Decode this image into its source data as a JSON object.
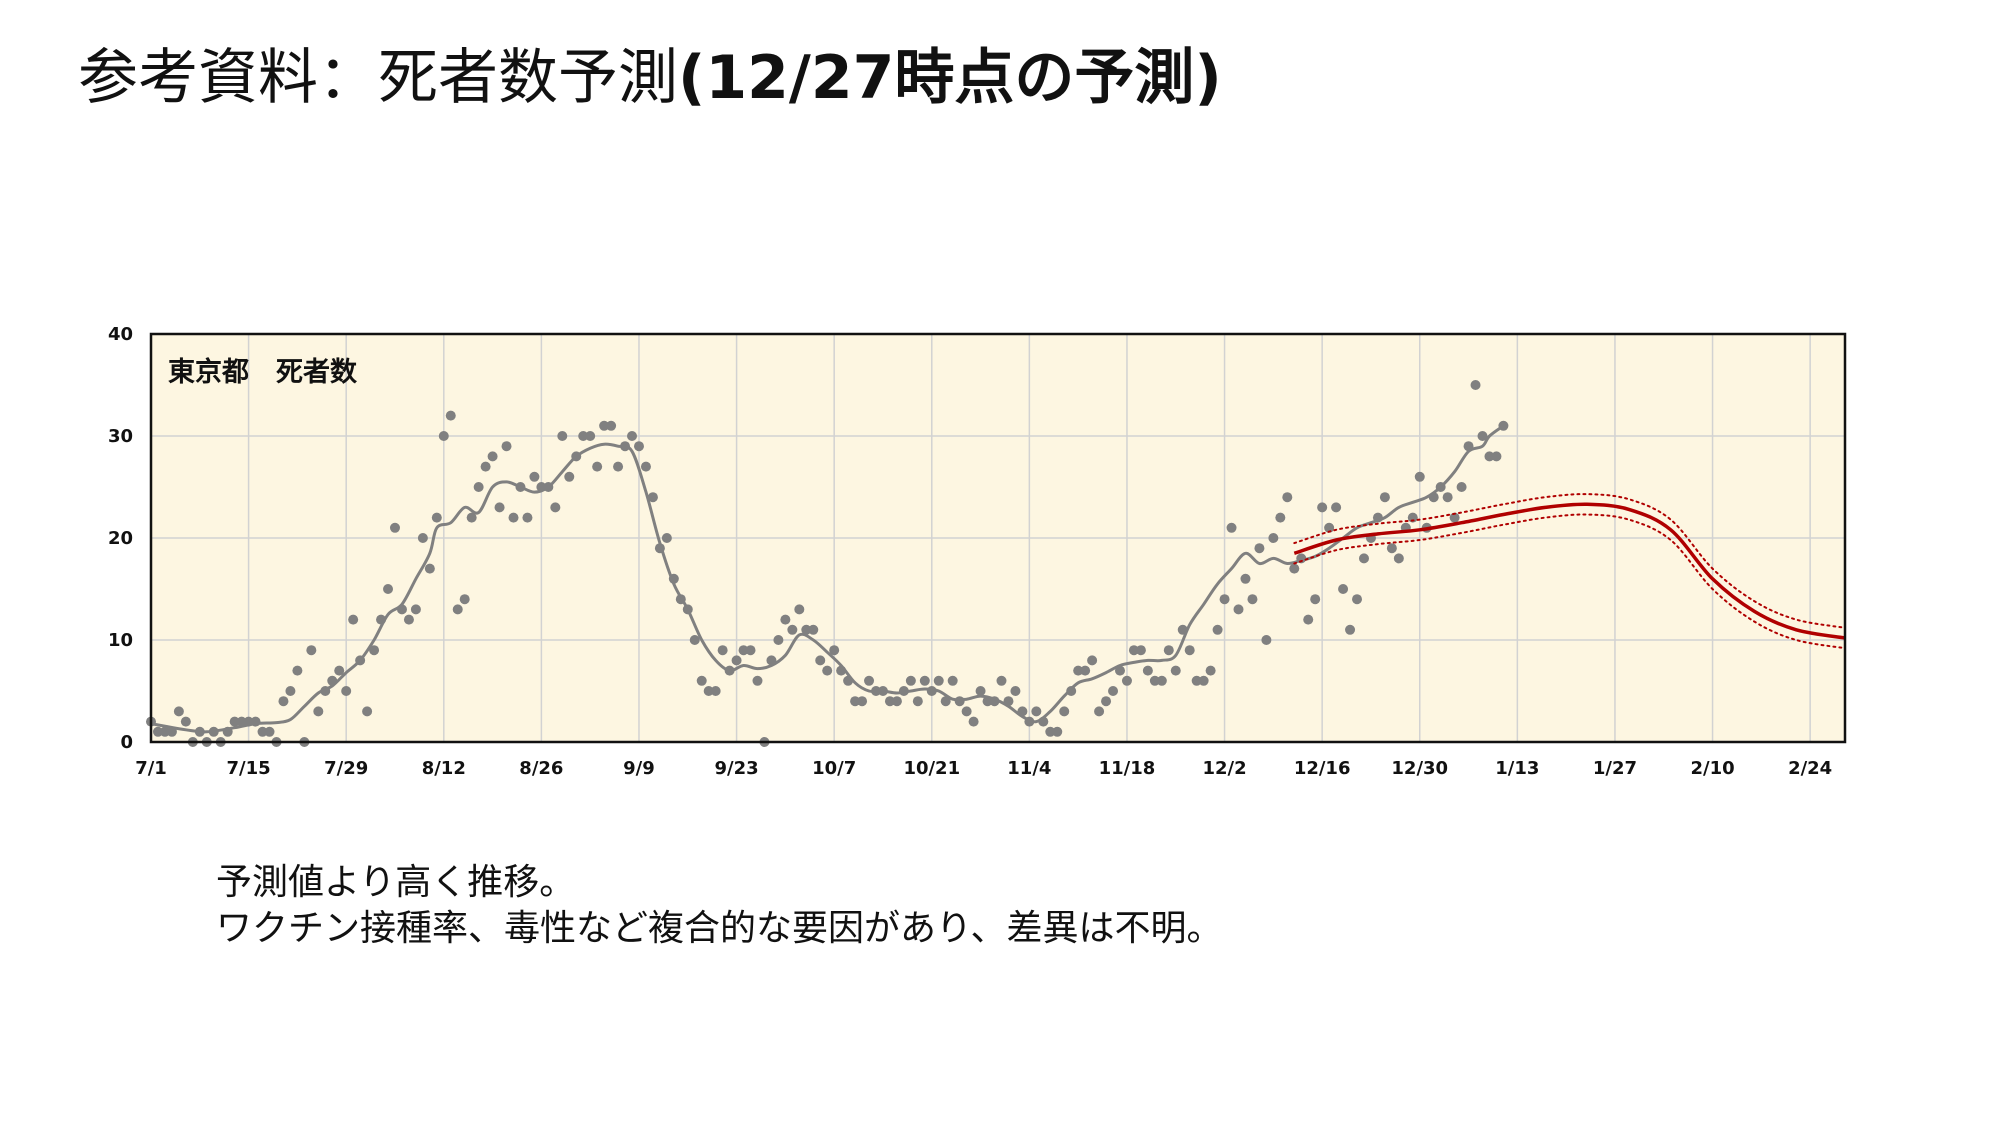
{
  "slide": {
    "title_main": "参考資料：死者数予測",
    "title_sub": "(12/27時点の予測)",
    "body_lines": [
      "予測値より高く推移。",
      "ワクチン接種率、毒性など複合的な要因があり、差異は不明。"
    ]
  },
  "colors": {
    "plot_background": "#fdf6e1",
    "grid": "#d2d2d2",
    "observed": "#808080",
    "forecast": "#b00000"
  },
  "chart_data": {
    "type": "line",
    "title": "東京都　死者数",
    "xlabel": "",
    "ylabel": "",
    "x_ticks": [
      "7/1",
      "7/15",
      "7/29",
      "8/12",
      "8/26",
      "9/9",
      "9/23",
      "10/7",
      "10/21",
      "11/4",
      "11/18",
      "12/2",
      "12/16",
      "12/30",
      "1/13",
      "1/27",
      "2/10",
      "2/24"
    ],
    "y_ticks": [
      0,
      10,
      20,
      30,
      40
    ],
    "xlim_day": [
      0,
      243
    ],
    "ylim": [
      0,
      40
    ],
    "grid": true,
    "series": [
      {
        "kind": "scatter",
        "x_day": [
          0,
          1,
          2,
          3,
          4,
          5,
          6,
          7,
          8,
          9,
          10,
          11,
          12,
          13,
          14,
          15,
          16,
          17,
          18,
          19,
          20,
          21,
          22,
          23,
          24,
          25,
          26,
          27,
          28,
          29,
          30,
          31,
          32,
          33,
          34,
          35,
          36,
          37,
          38,
          39,
          40,
          41,
          42,
          43,
          44,
          45,
          46,
          47,
          48,
          49,
          50,
          51,
          52,
          53,
          54,
          55,
          56,
          57,
          58,
          59,
          60,
          61,
          62,
          63,
          64,
          65,
          66,
          67,
          68,
          69,
          70,
          71,
          72,
          73,
          74,
          75,
          76,
          77,
          78,
          79,
          80,
          81,
          82,
          83,
          84,
          85,
          86,
          87,
          88,
          89,
          90,
          91,
          92,
          93,
          94,
          95,
          96,
          97,
          98,
          99,
          100,
          101,
          102,
          103,
          104,
          105,
          106,
          107,
          108,
          109,
          110,
          111,
          112,
          113,
          114,
          115,
          116,
          117,
          118,
          119,
          120,
          121,
          122,
          123,
          124,
          125,
          126,
          127,
          128,
          129,
          130,
          131,
          132,
          133,
          134,
          135,
          136,
          137,
          138,
          139,
          140,
          141,
          142,
          143,
          144,
          145,
          146,
          147,
          148,
          149,
          150,
          151,
          152,
          153,
          154,
          155,
          156,
          157,
          158,
          159,
          160,
          161,
          162,
          163,
          164,
          165,
          166,
          167,
          168,
          169,
          170,
          171,
          172,
          173,
          174,
          175,
          176,
          177,
          178,
          179,
          180,
          181,
          182,
          183,
          184,
          185,
          186,
          187,
          188,
          189,
          190,
          191,
          192,
          193,
          194
        ],
        "values": [
          2,
          1,
          1,
          1,
          3,
          2,
          0,
          1,
          0,
          1,
          0,
          1,
          2,
          2,
          2,
          2,
          1,
          1,
          0,
          4,
          5,
          7,
          0,
          9,
          3,
          5,
          6,
          7,
          5,
          12,
          8,
          3,
          9,
          12,
          15,
          21,
          13,
          12,
          13,
          20,
          17,
          22,
          30,
          32,
          13,
          14,
          22,
          25,
          27,
          28,
          23,
          29,
          22,
          25,
          22,
          26,
          25,
          25,
          23,
          30,
          26,
          28,
          30,
          30,
          27,
          31,
          31,
          27,
          29,
          30,
          29,
          27,
          24,
          19,
          20,
          16,
          14,
          13,
          10,
          6,
          5,
          5,
          9,
          7,
          8,
          9,
          9,
          6,
          0,
          8,
          10,
          12,
          11,
          13,
          11,
          11,
          8,
          7,
          9,
          7,
          6,
          4,
          4,
          6,
          5,
          5,
          4,
          4,
          5,
          6,
          4,
          6,
          5,
          6,
          4,
          6,
          4,
          3,
          2,
          5,
          4,
          4,
          6,
          4,
          5,
          3,
          2,
          3,
          2,
          1,
          1,
          3,
          5,
          7,
          7,
          8,
          3,
          4,
          5,
          7,
          6,
          9,
          9,
          7,
          6,
          6,
          9,
          7,
          11,
          9,
          6,
          6,
          7,
          11,
          14,
          21,
          13,
          16,
          14,
          19,
          10,
          20,
          22,
          24,
          17,
          18,
          12,
          14,
          23,
          21,
          23,
          15,
          11,
          14,
          18,
          20,
          22,
          24,
          19,
          18,
          21,
          22,
          26,
          21,
          24,
          25,
          24,
          22,
          25,
          29,
          35,
          30,
          28,
          28,
          31
        ]
      },
      {
        "kind": "line",
        "x_day": [
          0,
          5,
          8,
          12,
          15,
          18,
          20,
          22,
          24,
          26,
          28,
          30,
          32,
          34,
          36,
          38,
          40,
          41,
          43,
          45,
          47,
          49,
          51,
          53,
          55,
          57,
          59,
          61,
          63,
          65,
          67,
          69,
          71,
          73,
          75,
          77,
          79,
          81,
          83,
          85,
          87,
          89,
          91,
          93,
          95,
          97,
          99,
          101,
          103,
          105,
          107,
          109,
          111,
          113,
          115,
          117,
          119,
          121,
          123,
          125,
          127,
          129,
          131,
          133,
          135,
          137,
          139,
          141,
          143,
          145,
          147,
          149,
          151,
          153,
          155,
          157,
          159,
          161,
          163,
          165,
          167,
          169,
          171,
          173,
          175,
          177,
          179,
          181,
          183,
          185,
          187,
          189,
          191,
          192,
          194
        ],
        "values": [
          1.8,
          1.2,
          1.0,
          1.4,
          1.8,
          1.9,
          2.2,
          3.5,
          4.8,
          5.5,
          6.8,
          8.0,
          10.0,
          12.5,
          13.5,
          16.0,
          18.5,
          21.0,
          21.5,
          23.0,
          22.5,
          25.0,
          25.5,
          25.0,
          24.5,
          25.0,
          26.5,
          28.0,
          28.8,
          29.2,
          29.0,
          28.5,
          24.5,
          19.5,
          15.5,
          13.0,
          10.0,
          8.0,
          7.0,
          7.5,
          7.2,
          7.5,
          8.5,
          10.5,
          10.0,
          8.8,
          7.5,
          5.8,
          5.0,
          5.0,
          4.8,
          5.0,
          5.2,
          5.0,
          4.2,
          4.2,
          4.5,
          4.2,
          3.5,
          2.5,
          2.0,
          3.0,
          4.5,
          5.8,
          6.2,
          6.8,
          7.5,
          7.8,
          8.0,
          8.0,
          8.5,
          11.5,
          13.5,
          15.5,
          17.0,
          18.5,
          17.5,
          18.0,
          17.5,
          17.8,
          18.2,
          19.0,
          20.0,
          21.0,
          21.5,
          22.0,
          23.0,
          23.5,
          24.0,
          25.0,
          26.5,
          28.5,
          29.0,
          30.0,
          31.0
        ]
      },
      {
        "kind": "forecast",
        "x_day": [
          164,
          170,
          176,
          182,
          188,
          194,
          200,
          206,
          212,
          218,
          224,
          230,
          236,
          243
        ],
        "values": [
          18.5,
          19.8,
          20.4,
          20.8,
          21.5,
          22.3,
          23.0,
          23.3,
          22.8,
          20.8,
          16.0,
          12.8,
          11.0,
          10.2
        ],
        "band_offset": 1.0
      }
    ]
  }
}
